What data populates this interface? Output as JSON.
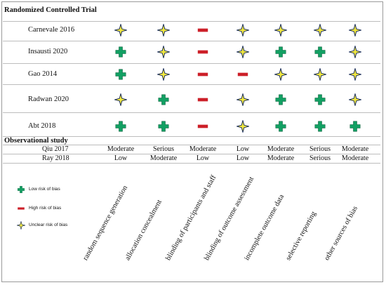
{
  "rct_title": "Randomized Controlled Trial",
  "obs_title": "Observational study",
  "domains": [
    "random sequence generation",
    "allocation concealment",
    "blinding of participants and staff",
    "blinding of outcome assessment",
    "incomplete outcome data",
    "selective reporting",
    "other sources of bias"
  ],
  "rct_studies": [
    {
      "name": "Carnevale 2016",
      "ratings": [
        "unclear",
        "unclear",
        "high",
        "unclear",
        "unclear",
        "unclear",
        "unclear"
      ]
    },
    {
      "name": "Insausti 2020",
      "ratings": [
        "low",
        "unclear",
        "high",
        "unclear",
        "low",
        "low",
        "unclear"
      ]
    },
    {
      "name": "Gao 2014",
      "ratings": [
        "low",
        "unclear",
        "high",
        "high",
        "unclear",
        "unclear",
        "unclear"
      ]
    },
    {
      "name": "Radwan 2020",
      "ratings": [
        "unclear",
        "low",
        "high",
        "unclear",
        "low",
        "low",
        "unclear"
      ]
    },
    {
      "name": "Abt 2018",
      "ratings": [
        "low",
        "low",
        "high",
        "unclear",
        "low",
        "low",
        "low"
      ]
    }
  ],
  "obs_studies": [
    {
      "name": "Qiu 2017",
      "ratings": [
        "Moderate",
        "Serious",
        "Moderate",
        "Low",
        "Moderate",
        "Serious",
        "Moderate"
      ]
    },
    {
      "name": "Ray 2018",
      "ratings": [
        "Low",
        "Moderate",
        "Low",
        "Low",
        "Moderate",
        "Serious",
        "Moderate"
      ]
    }
  ],
  "legend": [
    {
      "key": "low",
      "label": "Low risk of bias"
    },
    {
      "key": "high",
      "label": "High risk of bias"
    },
    {
      "key": "unclear",
      "label": "Unclear risk of bias"
    }
  ],
  "colors": {
    "low": "#12a063",
    "high": "#cc1f28",
    "unclear_fill": "#f3e93f",
    "unclear_stroke": "#1c2f5a"
  },
  "icons": {
    "low": "green-plus-icon",
    "high": "red-minus-icon",
    "unclear": "yellow-star-icon"
  }
}
